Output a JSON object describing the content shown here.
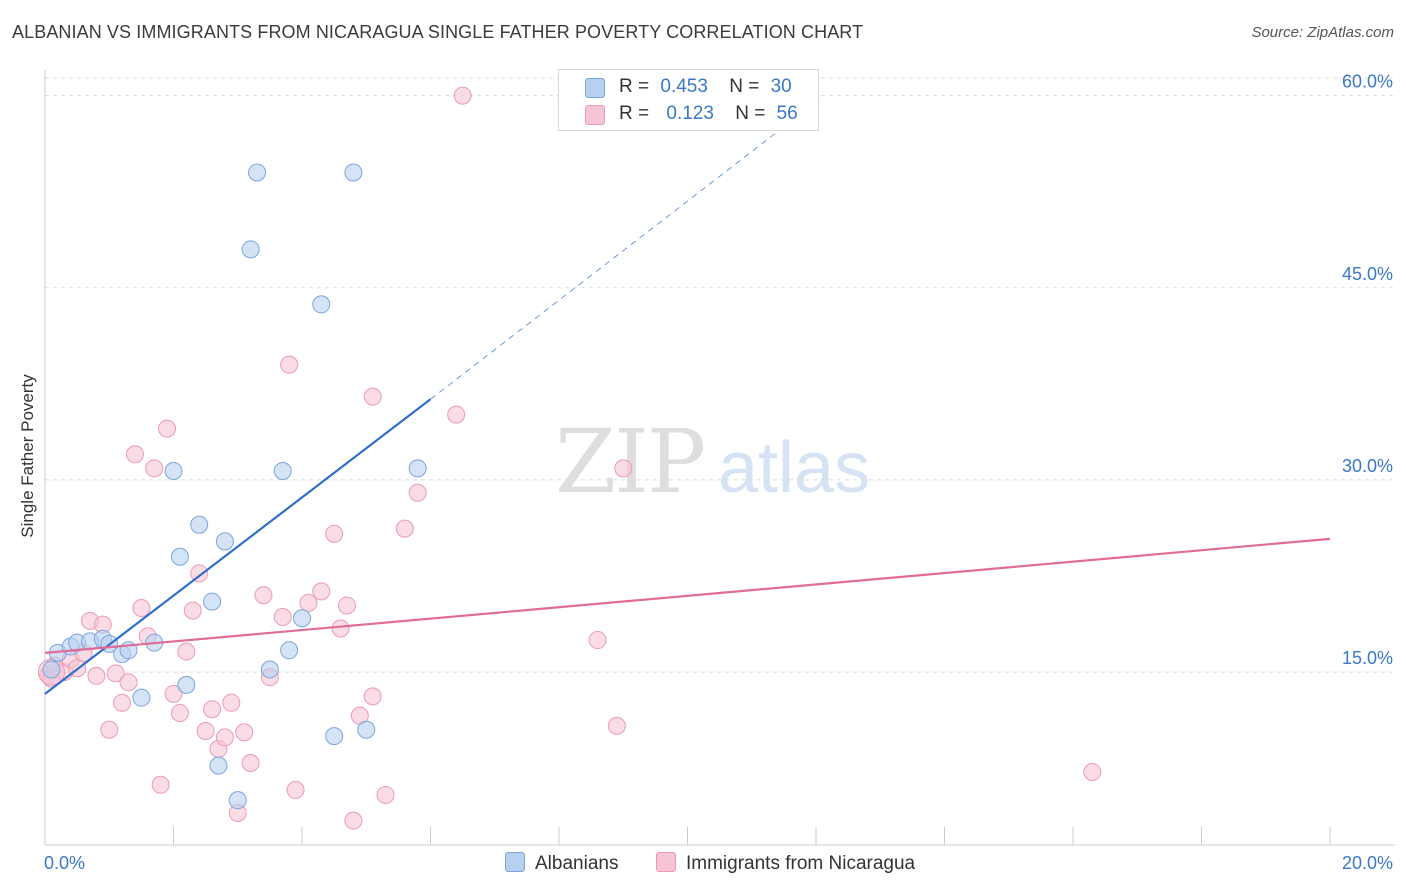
{
  "title": "ALBANIAN VS IMMIGRANTS FROM NICARAGUA SINGLE FATHER POVERTY CORRELATION CHART",
  "source": "Source: ZipAtlas.com",
  "watermark": {
    "zip": "ZIP",
    "atlas": "atlas"
  },
  "colors": {
    "blue_fill": "#b8d0f0",
    "blue_stroke": "#7aa6de",
    "blue_line": "#2f6fcb",
    "pink_fill": "#f7c4d4",
    "pink_stroke": "#ec9ab5",
    "pink_line": "#e06c97",
    "axis_text": "#3a78c8",
    "grid": "#dcdcdc"
  },
  "legend": {
    "rows": [
      {
        "r_label": "R =",
        "r_value": "0.453",
        "n_label": "N =",
        "n_value": "30"
      },
      {
        "r_label": "R =",
        "r_value": "0.123",
        "n_label": "N =",
        "n_value": "56"
      }
    ]
  },
  "bottom_legend": {
    "series1": "Albanians",
    "series2": "Immigrants from Nicaragua"
  },
  "chart_data": {
    "type": "scatter",
    "title": "ALBANIAN VS IMMIGRANTS FROM NICARAGUA SINGLE FATHER POVERTY CORRELATION CHART",
    "xlabel": "",
    "ylabel": "Single Father Poverty",
    "xlim": [
      0,
      20
    ],
    "ylim": [
      1.5,
      62
    ],
    "x_ticks": [
      0,
      20
    ],
    "x_tick_labels": [
      "0.0%",
      "20.0%"
    ],
    "y_ticks": [
      15,
      30,
      45,
      60
    ],
    "y_tick_labels": [
      "15.0%",
      "30.0%",
      "45.0%",
      "60.0%"
    ],
    "grid": true,
    "legend_position": "top-center",
    "series": [
      {
        "name": "Albanians",
        "r": 0.453,
        "n": 30,
        "points": [
          [
            0.1,
            15.2
          ],
          [
            0.2,
            16.5
          ],
          [
            0.4,
            17.0
          ],
          [
            0.5,
            17.3
          ],
          [
            0.7,
            17.4
          ],
          [
            0.9,
            17.6
          ],
          [
            1.0,
            17.2
          ],
          [
            1.2,
            16.4
          ],
          [
            1.3,
            16.7
          ],
          [
            1.5,
            13.0
          ],
          [
            1.7,
            17.3
          ],
          [
            2.0,
            30.7
          ],
          [
            2.1,
            24.0
          ],
          [
            2.2,
            14.0
          ],
          [
            2.4,
            26.5
          ],
          [
            2.6,
            20.5
          ],
          [
            2.7,
            7.7
          ],
          [
            2.8,
            25.2
          ],
          [
            3.0,
            5.0
          ],
          [
            3.2,
            48.0
          ],
          [
            3.3,
            54.0
          ],
          [
            3.5,
            15.2
          ],
          [
            3.7,
            30.7
          ],
          [
            3.8,
            16.7
          ],
          [
            4.0,
            19.2
          ],
          [
            4.3,
            43.7
          ],
          [
            4.5,
            10.0
          ],
          [
            4.8,
            54.0
          ],
          [
            5.0,
            10.5
          ],
          [
            5.8,
            30.9
          ]
        ],
        "trend": {
          "x0": 0,
          "y0": 13.3,
          "x1": 6.0,
          "y1": 36.3,
          "dash_to_x": 12.0,
          "dash_to_y": 59.5
        }
      },
      {
        "name": "Immigrants from Nicaragua",
        "r": 0.123,
        "n": 56,
        "points": [
          [
            0.05,
            14.8
          ],
          [
            0.15,
            15.5
          ],
          [
            0.3,
            15.0
          ],
          [
            0.4,
            16.0
          ],
          [
            0.5,
            15.3
          ],
          [
            0.6,
            16.5
          ],
          [
            0.7,
            19.0
          ],
          [
            0.8,
            14.7
          ],
          [
            0.9,
            18.7
          ],
          [
            1.0,
            10.5
          ],
          [
            1.1,
            14.9
          ],
          [
            1.2,
            12.6
          ],
          [
            1.3,
            14.2
          ],
          [
            1.4,
            32.0
          ],
          [
            1.5,
            20.0
          ],
          [
            1.6,
            17.8
          ],
          [
            1.7,
            30.9
          ],
          [
            1.8,
            6.2
          ],
          [
            1.9,
            34.0
          ],
          [
            2.0,
            13.3
          ],
          [
            2.1,
            11.8
          ],
          [
            2.2,
            16.6
          ],
          [
            2.3,
            19.8
          ],
          [
            2.4,
            22.7
          ],
          [
            2.5,
            10.4
          ],
          [
            2.6,
            12.1
          ],
          [
            2.7,
            9.0
          ],
          [
            2.8,
            9.9
          ],
          [
            2.9,
            12.6
          ],
          [
            3.0,
            4.0
          ],
          [
            3.1,
            10.3
          ],
          [
            3.2,
            7.9
          ],
          [
            3.4,
            21.0
          ],
          [
            3.5,
            14.6
          ],
          [
            3.7,
            19.3
          ],
          [
            3.9,
            5.8
          ],
          [
            3.8,
            39.0
          ],
          [
            4.1,
            20.4
          ],
          [
            4.3,
            21.3
          ],
          [
            4.5,
            25.8
          ],
          [
            4.6,
            18.4
          ],
          [
            4.7,
            20.2
          ],
          [
            4.8,
            3.4
          ],
          [
            4.9,
            11.6
          ],
          [
            5.1,
            13.1
          ],
          [
            5.1,
            36.5
          ],
          [
            5.3,
            5.4
          ],
          [
            5.6,
            26.2
          ],
          [
            5.8,
            29.0
          ],
          [
            6.4,
            35.1
          ],
          [
            6.5,
            60.0
          ],
          [
            8.6,
            17.5
          ],
          [
            8.9,
            10.8
          ],
          [
            9.0,
            30.9
          ],
          [
            16.3,
            7.2
          ],
          [
            0.1,
            14.5
          ]
        ],
        "trend": {
          "x0": 0,
          "y0": 16.5,
          "x1": 20,
          "y1": 25.4
        }
      }
    ]
  }
}
